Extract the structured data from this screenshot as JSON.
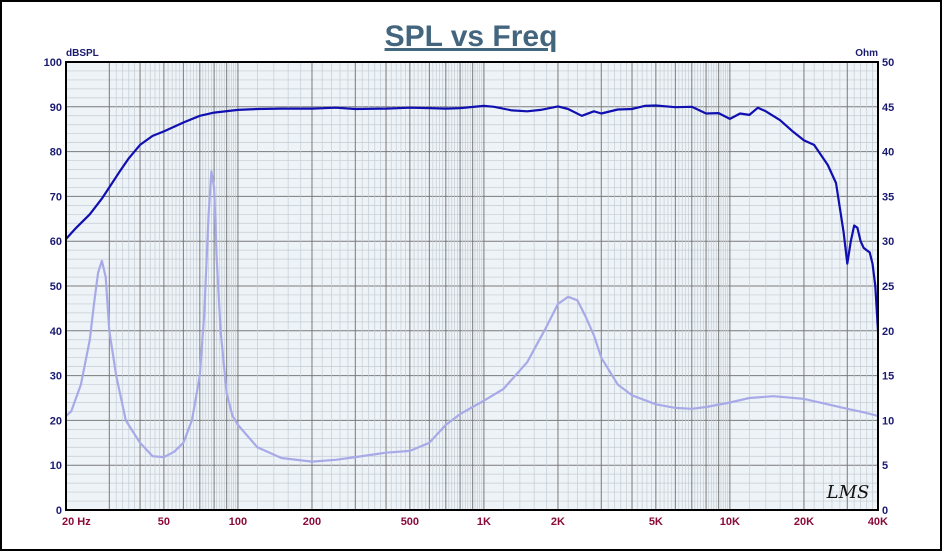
{
  "chart_data": {
    "type": "line",
    "title": "SPL vs Freq",
    "ylabel_left": "dBSPL",
    "ylabel_right": "Ohm",
    "x_scale": "log",
    "xlim": [
      20,
      40000
    ],
    "ylim_left": [
      0,
      100
    ],
    "ylim_right": [
      0,
      50
    ],
    "x_tick_values": [
      20,
      50,
      100,
      200,
      500,
      1000,
      2000,
      5000,
      10000,
      20000,
      40000
    ],
    "x_tick_labels": [
      "20  Hz",
      "50",
      "100",
      "200",
      "500",
      "1K",
      "2K",
      "5K",
      "10K",
      "20K",
      "40K"
    ],
    "y_left_ticks": [
      "0",
      "10",
      "20",
      "30",
      "40",
      "50",
      "60",
      "70",
      "80",
      "90",
      "100"
    ],
    "y_right_ticks": [
      "0",
      "5",
      "10",
      "15",
      "20",
      "25",
      "30",
      "35",
      "40",
      "45",
      "50"
    ],
    "grid": true,
    "logo_text": "LMS",
    "series": [
      {
        "axis": "left",
        "color": "#1010b0",
        "x": [
          20,
          22,
          25,
          28,
          30,
          33,
          36,
          40,
          45,
          50,
          60,
          70,
          80,
          100,
          120,
          150,
          200,
          250,
          300,
          400,
          500,
          600,
          700,
          800,
          1000,
          1100,
          1300,
          1500,
          1700,
          2000,
          2200,
          2500,
          2800,
          3000,
          3500,
          4000,
          4500,
          5000,
          6000,
          7000,
          8000,
          9000,
          10000,
          11000,
          12000,
          13000,
          14000,
          16000,
          18000,
          20000,
          22000,
          25000,
          27000,
          29000,
          30000,
          31000,
          32000,
          33000,
          34000,
          35000,
          36000,
          37000,
          38000,
          39000,
          40000
        ],
        "y": [
          60.5,
          63,
          66,
          69.5,
          72,
          75.5,
          78.5,
          81.5,
          83.5,
          84.5,
          86.5,
          88,
          88.7,
          89.3,
          89.5,
          89.6,
          89.6,
          89.8,
          89.5,
          89.6,
          89.8,
          89.7,
          89.6,
          89.7,
          90.2,
          90,
          89.2,
          89,
          89.3,
          90.1,
          89.5,
          88,
          89,
          88.5,
          89.4,
          89.5,
          90.2,
          90.3,
          89.9,
          90,
          88.5,
          88.6,
          87.3,
          88.5,
          88.2,
          89.8,
          89,
          87,
          84.5,
          82.5,
          81.5,
          77,
          73,
          62,
          55,
          60,
          63.5,
          63,
          60,
          58.5,
          58,
          57.5,
          55,
          50,
          40
        ]
      },
      {
        "axis": "right",
        "color": "#a8aae8",
        "x": [
          20,
          21,
          23,
          25,
          26,
          27,
          28,
          29,
          30,
          32,
          35,
          40,
          45,
          50,
          55,
          60,
          65,
          70,
          73,
          76,
          78,
          80,
          82,
          85,
          90,
          95,
          100,
          120,
          150,
          200,
          250,
          300,
          400,
          500,
          600,
          700,
          800,
          900,
          1000,
          1200,
          1500,
          1800,
          2000,
          2200,
          2400,
          2600,
          2800,
          3000,
          3500,
          4000,
          5000,
          6000,
          7000,
          8000,
          10000,
          12000,
          15000,
          20000,
          25000,
          30000,
          35000,
          40000
        ],
        "y": [
          10.5,
          11,
          14,
          19,
          23,
          26.5,
          27.8,
          26,
          20,
          15,
          10,
          7.5,
          6,
          5.9,
          6.5,
          7.5,
          10,
          15,
          22,
          33,
          37.8,
          36,
          28,
          20,
          13,
          10.5,
          9.5,
          7,
          5.8,
          5.4,
          5.6,
          5.9,
          6.4,
          6.6,
          7.5,
          9.5,
          10.7,
          11.5,
          12.2,
          13.5,
          16.5,
          20.5,
          23,
          23.8,
          23.4,
          21.5,
          19.5,
          17,
          14,
          12.8,
          11.8,
          11.4,
          11.3,
          11.5,
          12,
          12.5,
          12.7,
          12.4,
          11.8,
          11.3,
          10.9,
          10.5
        ]
      }
    ]
  }
}
